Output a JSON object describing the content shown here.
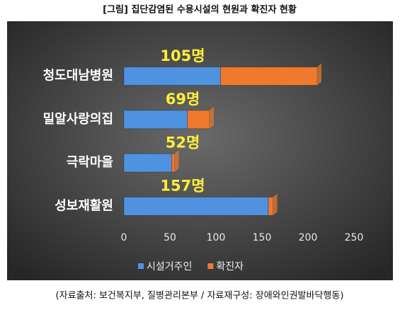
{
  "chart_data": {
    "type": "bar",
    "orientation": "horizontal",
    "stacked": true,
    "title": "[그림] 집단감염된 수용시설의 현원과 확진자 현황",
    "source": "(자료출처: 보건복지부, 질병관리본부 / 자료재구성: 장애와인권발바닥행동)",
    "categories": [
      "청도대남병원",
      "밀알사랑의집",
      "극락마을",
      "성보재활원"
    ],
    "series": [
      {
        "name": "시설거주인",
        "color": "#4f93e0",
        "values": [
          105,
          69,
          52,
          157
        ],
        "value_labels": [
          "105명",
          "69명",
          "52명",
          "157명"
        ]
      },
      {
        "name": "확진자",
        "color": "#ef7a2e",
        "values": [
          105,
          24,
          3,
          5
        ]
      }
    ],
    "xlim": [
      0,
      250
    ],
    "xticks": [
      0,
      50,
      100,
      150,
      200,
      250
    ],
    "grid": false,
    "legend": "bottom"
  }
}
